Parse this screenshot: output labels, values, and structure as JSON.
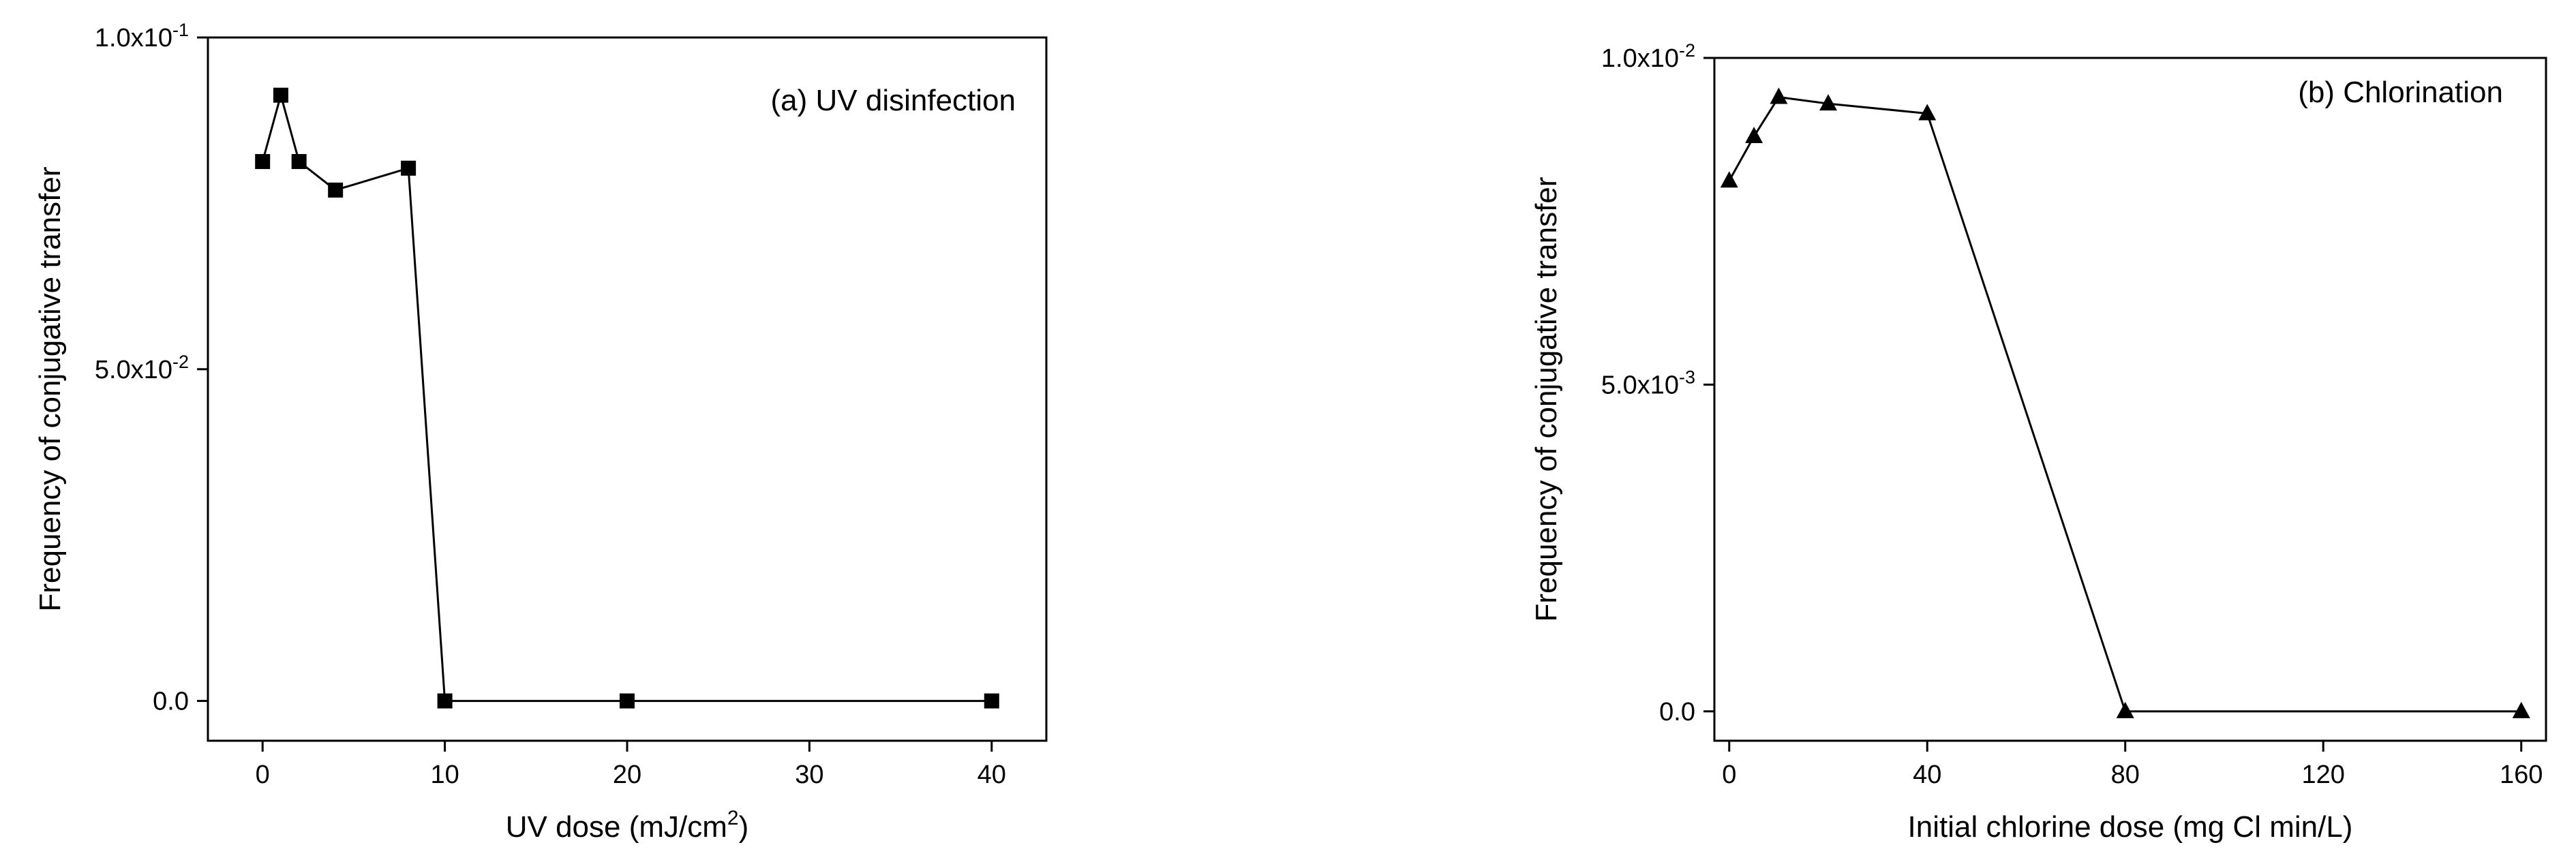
{
  "chart_data": [
    {
      "id": "a",
      "type": "line",
      "annotation": "(a) UV disinfection",
      "xlabel": "UV dose (mJ/cm",
      "xlabel_sup": "2",
      "xlabel_end": ")",
      "ylabel": "Frequency of conjugative transfer",
      "xlim": [
        -3,
        43
      ],
      "ylim": [
        -0.006,
        0.1
      ],
      "xticks": [
        {
          "v": 0,
          "label": "0"
        },
        {
          "v": 10,
          "label": "10"
        },
        {
          "v": 20,
          "label": "20"
        },
        {
          "v": 30,
          "label": "30"
        },
        {
          "v": 40,
          "label": "40"
        }
      ],
      "yticks": [
        {
          "v": 0,
          "mant": "0.0",
          "exp": ""
        },
        {
          "v": 0.05,
          "mant": "5.0x10",
          "exp": "-2"
        },
        {
          "v": 0.1,
          "mant": "1.0x10",
          "exp": "-1"
        }
      ],
      "marker": "square",
      "series": [
        {
          "x": [
            0,
            1,
            2,
            4,
            8,
            10,
            20,
            40
          ],
          "y": [
            0.0813,
            0.0913,
            0.0813,
            0.077,
            0.0803,
            0.0,
            0.0,
            0.0
          ]
        }
      ]
    },
    {
      "id": "b",
      "type": "line",
      "annotation": "(b) Chlorination",
      "xlabel": "Initial chlorine dose (mg Cl min/L)",
      "xlabel_sup": "",
      "xlabel_end": "",
      "ylabel": "Frequency of conjugative transfer",
      "xlim": [
        -3,
        165
      ],
      "ylim": [
        -0.00045,
        0.01
      ],
      "xticks": [
        {
          "v": 0,
          "label": "0"
        },
        {
          "v": 40,
          "label": "40"
        },
        {
          "v": 80,
          "label": "80"
        },
        {
          "v": 120,
          "label": "120"
        },
        {
          "v": 160,
          "label": "160"
        }
      ],
      "yticks": [
        {
          "v": 0,
          "mant": "0.0",
          "exp": ""
        },
        {
          "v": 0.005,
          "mant": "5.0x10",
          "exp": "-3"
        },
        {
          "v": 0.01,
          "mant": "1.0x10",
          "exp": "-2"
        }
      ],
      "marker": "triangle",
      "series": [
        {
          "x": [
            0,
            5,
            10,
            20,
            40,
            80,
            160
          ],
          "y": [
            0.00812,
            0.0088,
            0.0094,
            0.0093,
            0.00915,
            0.0,
            0.0
          ]
        }
      ]
    }
  ]
}
